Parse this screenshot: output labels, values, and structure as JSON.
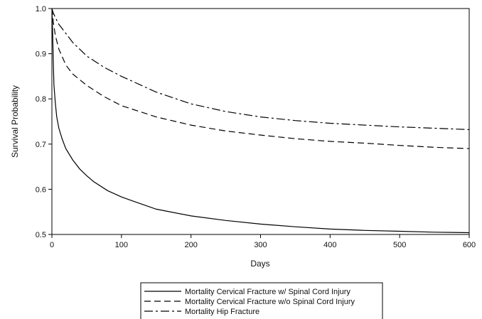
{
  "chart_data": {
    "type": "line",
    "title": "",
    "xlabel": "Days",
    "ylabel": "Survival Probability",
    "xlim": [
      0,
      600
    ],
    "ylim": [
      0.5,
      1.0
    ],
    "x_ticks": [
      0,
      100,
      200,
      300,
      400,
      500,
      600
    ],
    "y_ticks": [
      0.5,
      0.6,
      0.7,
      0.8,
      0.9,
      1.0
    ],
    "grid": false,
    "legend_position": "bottom",
    "series": [
      {
        "name": "Mortality Cervical Fracture w/ Spinal Cord Injury",
        "line_style": "solid",
        "color": "#000000",
        "x": [
          0,
          1,
          2,
          3,
          5,
          7,
          10,
          15,
          20,
          30,
          40,
          50,
          60,
          80,
          100,
          120,
          150,
          200,
          250,
          300,
          350,
          400,
          450,
          500,
          550,
          600
        ],
        "y": [
          1.0,
          0.95,
          0.88,
          0.83,
          0.79,
          0.76,
          0.735,
          0.71,
          0.69,
          0.665,
          0.645,
          0.63,
          0.617,
          0.597,
          0.583,
          0.572,
          0.556,
          0.541,
          0.531,
          0.523,
          0.517,
          0.512,
          0.509,
          0.507,
          0.505,
          0.504
        ]
      },
      {
        "name": "Mortality Cervical Fracture w/o Spinal Cord Injury",
        "line_style": "dashed",
        "color": "#000000",
        "x": [
          0,
          2,
          5,
          10,
          20,
          30,
          50,
          75,
          100,
          150,
          200,
          250,
          300,
          350,
          400,
          450,
          500,
          550,
          600
        ],
        "y": [
          1.0,
          0.97,
          0.94,
          0.91,
          0.875,
          0.855,
          0.83,
          0.805,
          0.785,
          0.76,
          0.742,
          0.729,
          0.72,
          0.712,
          0.706,
          0.702,
          0.697,
          0.693,
          0.69
        ]
      },
      {
        "name": "Mortality Hip Fracture",
        "line_style": "dashdot",
        "color": "#000000",
        "x": [
          0,
          2,
          5,
          10,
          20,
          30,
          50,
          75,
          100,
          150,
          200,
          250,
          300,
          350,
          400,
          450,
          500,
          550,
          600
        ],
        "y": [
          1.0,
          0.99,
          0.98,
          0.965,
          0.945,
          0.925,
          0.895,
          0.87,
          0.85,
          0.815,
          0.789,
          0.772,
          0.76,
          0.752,
          0.746,
          0.742,
          0.738,
          0.735,
          0.732
        ]
      }
    ]
  }
}
